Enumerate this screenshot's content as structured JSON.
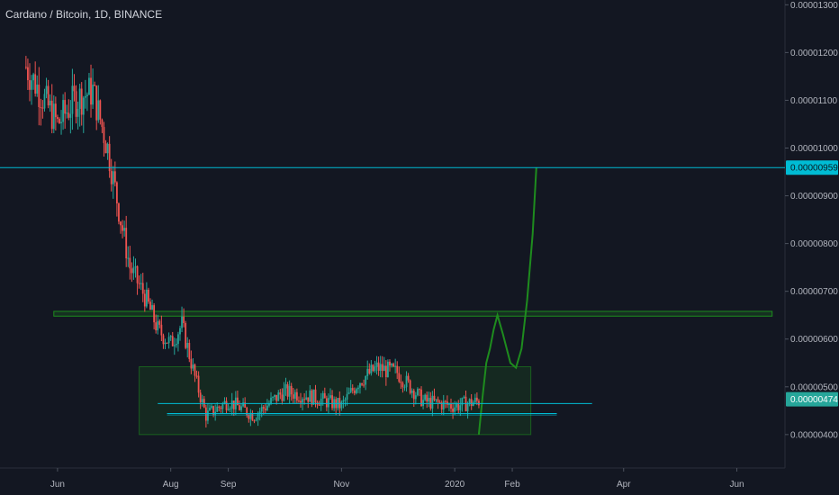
{
  "header": {
    "title": "Cardano / Bitcoin, 1D, BINANCE"
  },
  "colors": {
    "background": "#131722",
    "up": "#26a69a",
    "down": "#ef5350",
    "cyan_line": "#00bcd4",
    "projection": "#1e8c1e",
    "zone_fill": "#1b5e20",
    "tag_cyan": "#00bcd4",
    "tag_green": "#26a69a"
  },
  "chart_data": {
    "type": "candlestick",
    "title": "Cardano / Bitcoin, 1D, BINANCE",
    "x_ticks": [
      "Jun",
      "Aug",
      "Sep",
      "Nov",
      "2020",
      "Feb",
      "Apr",
      "Jun"
    ],
    "y_ticks": [
      "0.00001300",
      "0.00001200",
      "0.00001100",
      "0.00001000",
      "0.00000900",
      "0.00000800",
      "0.00000700",
      "0.00000600",
      "0.00000500",
      "0.00000400"
    ],
    "ylim": [
      3.3e-06,
      1.31e-05
    ],
    "price_tags": [
      {
        "label": "0.00000959",
        "value": 9.59e-06,
        "color": "cyan"
      },
      {
        "label": "0.00000474",
        "value": 4.74e-06,
        "color": "green"
      }
    ],
    "annotations": {
      "resistance_line": 9.59e-06,
      "resistance_zone": [
        6.48e-06,
        6.58e-06
      ],
      "range_box": [
        4e-06,
        5.42e-06
      ],
      "support_lines": [
        4.65e-06,
        4.44e-06,
        4.41e-06
      ]
    },
    "trend": [
      [
        "2019-05-15",
        1.17e-05
      ],
      [
        "2019-05-25",
        1.1e-05
      ],
      [
        "2019-06-01",
        1.05e-05
      ],
      [
        "2019-06-10",
        1.1e-05
      ],
      [
        "2019-06-20",
        1.12e-05
      ],
      [
        "2019-06-28",
        1e-05
      ],
      [
        "2019-07-05",
        8.5e-06
      ],
      [
        "2019-07-10",
        7.5e-06
      ],
      [
        "2019-07-18",
        6.9e-06
      ],
      [
        "2019-07-25",
        6.2e-06
      ],
      [
        "2019-08-01",
        5.9e-06
      ],
      [
        "2019-08-07",
        6.3e-06
      ],
      [
        "2019-08-14",
        5.2e-06
      ],
      [
        "2019-08-20",
        4.4e-06
      ],
      [
        "2019-09-01",
        4.7e-06
      ],
      [
        "2019-09-15",
        4.4e-06
      ],
      [
        "2019-10-01",
        4.9e-06
      ],
      [
        "2019-10-15",
        4.8e-06
      ],
      [
        "2019-11-01",
        4.6e-06
      ],
      [
        "2019-11-10",
        5.1e-06
      ],
      [
        "2019-11-20",
        5.4e-06
      ],
      [
        "2019-12-01",
        5.3e-06
      ],
      [
        "2019-12-15",
        4.7e-06
      ],
      [
        "2020-01-01",
        4.6e-06
      ],
      [
        "2020-01-14",
        4.7e-06
      ]
    ]
  }
}
